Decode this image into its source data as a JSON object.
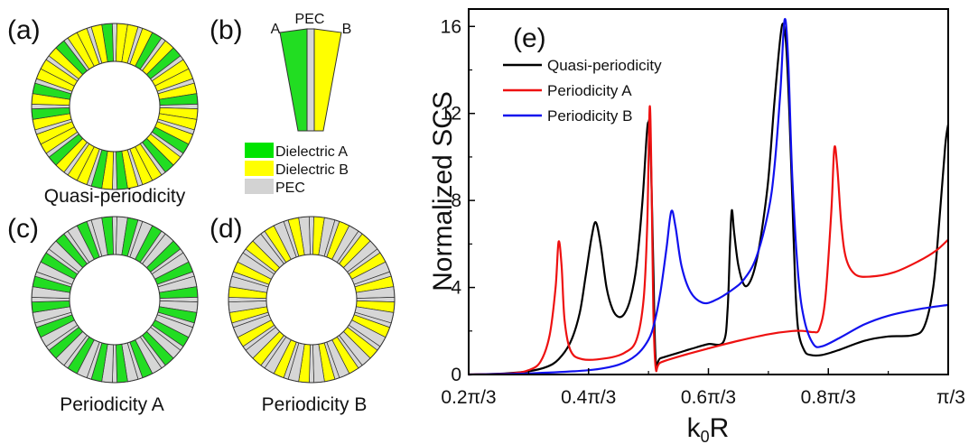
{
  "panels": {
    "a": {
      "letter": "(a)",
      "caption": "Quasi-periodicity"
    },
    "b": {
      "letter": "(b)",
      "label_a": "A",
      "label_pec": "PEC",
      "label_b": "B"
    },
    "c": {
      "letter": "(c)",
      "caption": "Periodicity A"
    },
    "d": {
      "letter": "(d)",
      "caption": "Periodicity B"
    },
    "e": {
      "letter": "(e)"
    }
  },
  "material_legend": [
    {
      "label": "Dielectric A",
      "color": "#00e400"
    },
    {
      "label": "Dielectric B",
      "color": "#ffff00"
    },
    {
      "label": "PEC",
      "color": "#d3d3d3"
    }
  ],
  "colors": {
    "dielA": "#22dd22",
    "dielB": "#ffff00",
    "pec": "#d6d6d6",
    "border": "#333333"
  },
  "rings": {
    "sectors": 20,
    "quasi_sequence": [
      "A",
      "B",
      "A",
      "A",
      "B",
      "A",
      "B",
      "A",
      "A",
      "B",
      "A",
      "A",
      "B",
      "A",
      "B",
      "A",
      "A",
      "B",
      "A",
      "B"
    ],
    "periodicity_a": "A",
    "periodicity_b": "B"
  },
  "chart_data": {
    "type": "line",
    "title": "",
    "xlabel_main": "k",
    "xlabel_sub": "0",
    "xlabel_tail": "R",
    "ylabel": "Normalized SCS",
    "panel_label": "(e)",
    "xlim": [
      0.2,
      1.0
    ],
    "ylim": [
      0,
      16.8
    ],
    "x_unit": "π/3",
    "xticks": [
      0.2,
      0.4,
      0.6,
      0.8,
      1.0
    ],
    "xtick_labels": [
      "0.2π/3",
      "0.4π/3",
      "0.6π/3",
      "0.8π/3",
      "π/3"
    ],
    "yticks": [
      0,
      4,
      8,
      12,
      16
    ],
    "ytick_labels": [
      "0",
      "4",
      "8",
      "12",
      "16"
    ],
    "grid": false,
    "legend_position": "top-left",
    "series": [
      {
        "name": "Quasi-periodicity",
        "color": "#000000",
        "points": [
          [
            0.2,
            0.0
          ],
          [
            0.26,
            0.05
          ],
          [
            0.3,
            0.15
          ],
          [
            0.33,
            0.35
          ],
          [
            0.35,
            0.7
          ],
          [
            0.37,
            1.5
          ],
          [
            0.385,
            2.8
          ],
          [
            0.395,
            4.5
          ],
          [
            0.405,
            6.3
          ],
          [
            0.412,
            7.0
          ],
          [
            0.42,
            6.0
          ],
          [
            0.43,
            4.0
          ],
          [
            0.44,
            3.0
          ],
          [
            0.45,
            2.65
          ],
          [
            0.46,
            2.8
          ],
          [
            0.47,
            3.5
          ],
          [
            0.48,
            5.0
          ],
          [
            0.49,
            8.0
          ],
          [
            0.497,
            11.0
          ],
          [
            0.5,
            11.6
          ],
          [
            0.503,
            11.0
          ],
          [
            0.508,
            5.0
          ],
          [
            0.512,
            0.7
          ],
          [
            0.52,
            0.75
          ],
          [
            0.55,
            1.0
          ],
          [
            0.58,
            1.25
          ],
          [
            0.6,
            1.4
          ],
          [
            0.625,
            1.5
          ],
          [
            0.632,
            3.0
          ],
          [
            0.636,
            6.0
          ],
          [
            0.639,
            7.55
          ],
          [
            0.643,
            6.5
          ],
          [
            0.65,
            5.0
          ],
          [
            0.66,
            4.1
          ],
          [
            0.67,
            4.3
          ],
          [
            0.68,
            5.2
          ],
          [
            0.69,
            6.8
          ],
          [
            0.7,
            9.0
          ],
          [
            0.71,
            12.5
          ],
          [
            0.72,
            15.5
          ],
          [
            0.725,
            16.1
          ],
          [
            0.73,
            15.0
          ],
          [
            0.735,
            12.0
          ],
          [
            0.74,
            8.0
          ],
          [
            0.745,
            4.0
          ],
          [
            0.75,
            2.0
          ],
          [
            0.76,
            1.1
          ],
          [
            0.77,
            0.9
          ],
          [
            0.79,
            0.9
          ],
          [
            0.82,
            1.15
          ],
          [
            0.86,
            1.55
          ],
          [
            0.9,
            1.75
          ],
          [
            0.94,
            1.8
          ],
          [
            0.96,
            2.2
          ],
          [
            0.975,
            4.0
          ],
          [
            0.985,
            7.0
          ],
          [
            0.995,
            10.5
          ],
          [
            1.0,
            11.5
          ]
        ]
      },
      {
        "name": "Periodicity A",
        "color": "#ee1111",
        "points": [
          [
            0.2,
            0.0
          ],
          [
            0.27,
            0.05
          ],
          [
            0.3,
            0.2
          ],
          [
            0.32,
            0.6
          ],
          [
            0.335,
            1.8
          ],
          [
            0.345,
            4.0
          ],
          [
            0.35,
            6.1
          ],
          [
            0.355,
            5.0
          ],
          [
            0.36,
            2.5
          ],
          [
            0.37,
            1.1
          ],
          [
            0.39,
            0.7
          ],
          [
            0.43,
            0.75
          ],
          [
            0.46,
            1.0
          ],
          [
            0.48,
            1.6
          ],
          [
            0.492,
            3.5
          ],
          [
            0.498,
            7.0
          ],
          [
            0.502,
            12.3
          ],
          [
            0.505,
            9.0
          ],
          [
            0.508,
            3.0
          ],
          [
            0.512,
            0.3
          ],
          [
            0.52,
            0.55
          ],
          [
            0.56,
            0.9
          ],
          [
            0.6,
            1.2
          ],
          [
            0.65,
            1.55
          ],
          [
            0.7,
            1.85
          ],
          [
            0.74,
            2.0
          ],
          [
            0.76,
            2.0
          ],
          [
            0.775,
            1.95
          ],
          [
            0.785,
            2.1
          ],
          [
            0.795,
            3.5
          ],
          [
            0.805,
            7.5
          ],
          [
            0.81,
            10.4
          ],
          [
            0.815,
            9.5
          ],
          [
            0.822,
            6.8
          ],
          [
            0.83,
            5.3
          ],
          [
            0.845,
            4.6
          ],
          [
            0.87,
            4.5
          ],
          [
            0.91,
            4.7
          ],
          [
            0.95,
            5.2
          ],
          [
            0.98,
            5.7
          ],
          [
            1.0,
            6.2
          ]
        ]
      },
      {
        "name": "Periodicity B",
        "color": "#1111ee",
        "points": [
          [
            0.2,
            0.0
          ],
          [
            0.3,
            0.05
          ],
          [
            0.4,
            0.2
          ],
          [
            0.45,
            0.45
          ],
          [
            0.48,
            0.9
          ],
          [
            0.5,
            1.6
          ],
          [
            0.51,
            2.4
          ],
          [
            0.52,
            3.8
          ],
          [
            0.53,
            5.8
          ],
          [
            0.538,
            7.5
          ],
          [
            0.545,
            6.8
          ],
          [
            0.555,
            5.0
          ],
          [
            0.57,
            3.8
          ],
          [
            0.59,
            3.3
          ],
          [
            0.61,
            3.4
          ],
          [
            0.64,
            3.9
          ],
          [
            0.66,
            4.4
          ],
          [
            0.68,
            5.4
          ],
          [
            0.7,
            7.5
          ],
          [
            0.71,
            9.5
          ],
          [
            0.72,
            13.0
          ],
          [
            0.727,
            16.3
          ],
          [
            0.733,
            14.5
          ],
          [
            0.74,
            9.0
          ],
          [
            0.75,
            4.5
          ],
          [
            0.76,
            2.5
          ],
          [
            0.775,
            1.4
          ],
          [
            0.79,
            1.3
          ],
          [
            0.82,
            1.7
          ],
          [
            0.86,
            2.3
          ],
          [
            0.9,
            2.7
          ],
          [
            0.95,
            3.0
          ],
          [
            1.0,
            3.2
          ]
        ]
      }
    ]
  }
}
